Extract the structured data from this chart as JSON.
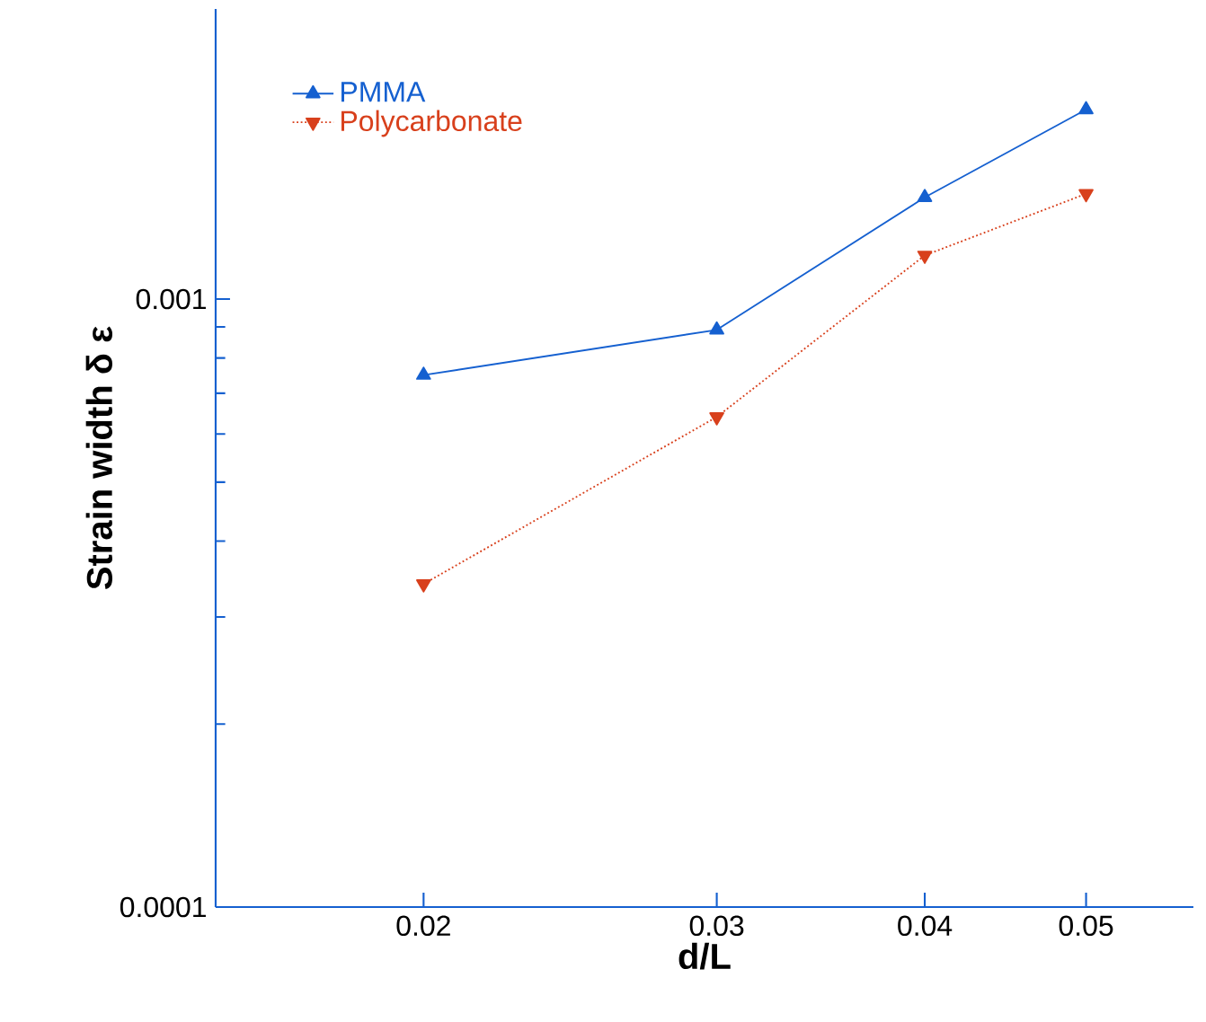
{
  "chart_data": {
    "type": "line",
    "xlabel": "d/L",
    "ylabel": "Strain width δ ε",
    "log": "xy",
    "xlim": [
      0.015,
      0.058
    ],
    "ylim": [
      0.0001,
      0.003
    ],
    "xticks": [
      0.02,
      0.03,
      0.04,
      0.05
    ],
    "yticks": [
      0.0001,
      0.001
    ],
    "x": [
      0.02,
      0.03,
      0.04,
      0.05
    ],
    "series": [
      {
        "name": "PMMA",
        "color": "#1560d0",
        "values": [
          0.00075,
          0.00089,
          0.00147,
          0.00205
        ],
        "marker": "triangle",
        "line_style": "solid"
      },
      {
        "name": "Polycarbonate",
        "color": "#d8401c",
        "values": [
          0.00034,
          0.00064,
          0.00118,
          0.00149
        ],
        "marker": "triangle-down",
        "line_style": "dotted"
      }
    ],
    "legend": "top left",
    "grid": false
  }
}
